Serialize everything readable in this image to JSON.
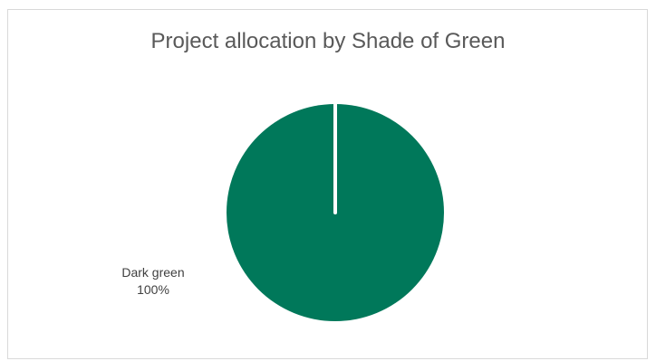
{
  "chart_data": {
    "type": "pie",
    "title": "Project allocation by Shade of Green",
    "slices": [
      {
        "label": "Dark green",
        "value": 100,
        "percent_label": "100%",
        "color": "#00785A"
      }
    ],
    "legend": "none",
    "border_color": "#d9d9d9",
    "separator_color": "#ffffff"
  }
}
